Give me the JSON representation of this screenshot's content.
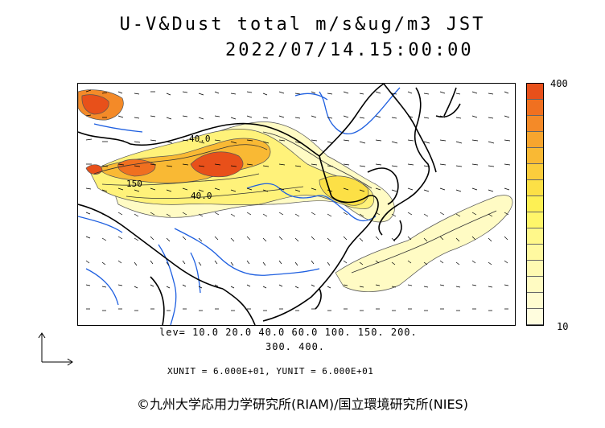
{
  "title": "U-V&Dust total m/s&ug/m3 JST",
  "datetime": "2022/07/14.15:00:00",
  "colorbar": {
    "max_label": "400",
    "min_label": "10",
    "colors": [
      "#e8501a",
      "#f07020",
      "#f48a28",
      "#f7a52e",
      "#f9b934",
      "#fbcd3c",
      "#fce046",
      "#fdf054",
      "#fff66a",
      "#fff88a",
      "#fff9a0",
      "#fffab2",
      "#fffbc2",
      "#fffcd0",
      "#fffdde"
    ]
  },
  "levels_line1": "lev= 10.0 20.0 40.0 60.0 100. 150. 200.",
  "levels_line2": "300. 400.",
  "units_line": "XUNIT = 6.000E+01, YUNIT = 6.000E+01",
  "contour_labels": [
    "40.0",
    "150",
    "40.0"
  ],
  "credit": "©九州大学応用力学研究所(RIAM)/国立環境研究所(NIES)"
}
